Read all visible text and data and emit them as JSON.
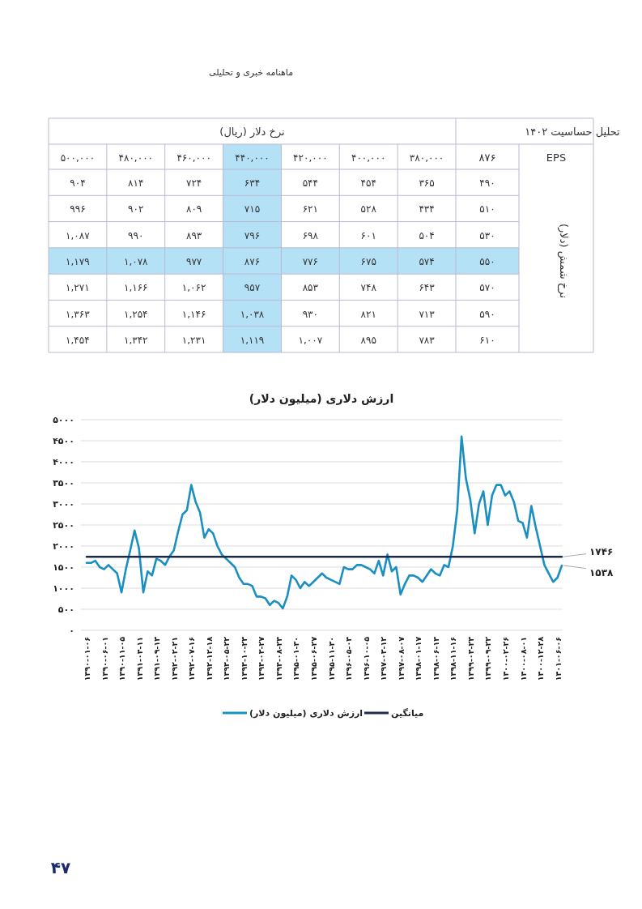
{
  "chart_data": [
    {
      "type": "heatmap",
      "subtitle": "ماهنامه خبری و تحلیلی",
      "xlabel": "نرخ دلار (ریال)",
      "ylabel": "نرخ شمش (دلار)",
      "annotations": [
        "EPS",
        "۸۷۶",
        "تحلیل حساسیت ۱۴۰۲"
      ],
      "categories": [
        "۵۰۰,۰۰۰",
        "۴۸۰,۰۰۰",
        "۴۶۰,۰۰۰",
        "۴۴۰,۰۰۰",
        "۴۲۰,۰۰۰",
        "۴۰۰,۰۰۰",
        "۳۸۰,۰۰۰"
      ],
      "y_categories": [
        "۴۹۰",
        "۵۱۰",
        "۵۳۰",
        "۵۵۰",
        "۵۷۰",
        "۵۹۰",
        "۶۱۰"
      ],
      "cells": [
        [
          904,
          814,
          724,
          634,
          544,
          454,
          365
        ],
        [
          996,
          902,
          809,
          715,
          621,
          528,
          434
        ],
        [
          1087,
          990,
          893,
          796,
          698,
          601,
          504
        ],
        [
          1179,
          1078,
          977,
          876,
          776,
          675,
          574
        ],
        [
          1271,
          1166,
          1062,
          957,
          853,
          748,
          643
        ],
        [
          1363,
          1254,
          1146,
          1038,
          930,
          821,
          713
        ],
        [
          1454,
          1342,
          1231,
          1119,
          1007,
          895,
          783
        ]
      ],
      "cell_labels": [
        [
          "۹۰۴",
          "۸۱۴",
          "۷۲۴",
          "۶۳۴",
          "۵۴۴",
          "۴۵۴",
          "۳۶۵"
        ],
        [
          "۹۹۶",
          "۹۰۲",
          "۸۰۹",
          "۷۱۵",
          "۶۲۱",
          "۵۲۸",
          "۴۳۴"
        ],
        [
          "۱,۰۸۷",
          "۹۹۰",
          "۸۹۳",
          "۷۹۶",
          "۶۹۸",
          "۶۰۱",
          "۵۰۴"
        ],
        [
          "۱,۱۷۹",
          "۱,۰۷۸",
          "۹۷۷",
          "۸۷۶",
          "۷۷۶",
          "۶۷۵",
          "۵۷۴"
        ],
        [
          "۱,۲۷۱",
          "۱,۱۶۶",
          "۱,۰۶۲",
          "۹۵۷",
          "۸۵۳",
          "۷۴۸",
          "۶۴۳"
        ],
        [
          "۱,۳۶۳",
          "۱,۲۵۴",
          "۱,۱۴۶",
          "۱,۰۳۸",
          "۹۳۰",
          "۸۲۱",
          "۷۱۳"
        ],
        [
          "۱,۴۵۴",
          "۱,۳۴۲",
          "۱,۲۳۱",
          "۱,۱۱۹",
          "۱,۰۰۷",
          "۸۹۵",
          "۷۸۳"
        ]
      ],
      "bands": [
        {
          "axis": "x",
          "from": "۴۴۰,۰۰۰",
          "to": "۴۴۰,۰۰۰",
          "color": "#b5e1f6"
        },
        {
          "axis": "y",
          "from": "۵۵۰",
          "to": "۵۵۰",
          "color": "#b5e1f6"
        }
      ]
    },
    {
      "type": "line",
      "title": "ارزش دلاری (میلیون دلار)",
      "annotations": [
        "۴۷"
      ],
      "legend": "bottom",
      "grid": "y",
      "ylim": [
        0,
        5000
      ],
      "yticks": [
        {
          "value": 0,
          "label": "۰"
        },
        {
          "value": 500,
          "label": "۵۰۰"
        },
        {
          "value": 1000,
          "label": "۱۰۰۰"
        },
        {
          "value": 1500,
          "label": "۱۵۰۰"
        },
        {
          "value": 2000,
          "label": "۲۰۰۰"
        },
        {
          "value": 2500,
          "label": "۲۵۰۰"
        },
        {
          "value": 3000,
          "label": "۳۰۰۰"
        },
        {
          "value": 3500,
          "label": "۳۵۰۰"
        },
        {
          "value": 4000,
          "label": "۴۰۰۰"
        },
        {
          "value": 4500,
          "label": "۴۵۰۰"
        },
        {
          "value": 5000,
          "label": "۵۰۰۰"
        }
      ],
      "categories": [
        "۱۳۹۰-۰۱-۰۶",
        null,
        null,
        null,
        "۱۳۹۰-۰۶-۰۱",
        null,
        null,
        null,
        "۱۳۹۰-۱۱-۰۵",
        null,
        null,
        null,
        "۱۳۹۱-۰۴-۱۱",
        null,
        null,
        null,
        "۱۳۹۱-۰۹-۱۳",
        null,
        null,
        null,
        "۱۳۹۲-۰۲-۲۱",
        null,
        null,
        null,
        "۱۳۹۲-۰۷-۱۶",
        null,
        null,
        null,
        "۱۳۹۲-۱۲-۱۸",
        null,
        null,
        null,
        "۱۳۹۳-۰۵-۲۲",
        null,
        null,
        null,
        "۱۳۹۳-۱۰-۲۳",
        null,
        null,
        null,
        "۱۳۹۴-۰۳-۲۷",
        null,
        null,
        null,
        "۱۳۹۴-۰۸-۲۴",
        null,
        null,
        null,
        "۱۳۹۵-۰۱-۳۰",
        null,
        null,
        null,
        "۱۳۹۵-۰۶-۲۷",
        null,
        null,
        null,
        "۱۳۹۵-۱۱-۳۰",
        null,
        null,
        null,
        "۱۳۹۶-۰۵-۰۴",
        null,
        null,
        null,
        "۱۳۹۶-۱۰-۰۵",
        null,
        null,
        null,
        "۱۳۹۷-۰۳-۱۲",
        null,
        null,
        null,
        "۱۳۹۷-۰۸-۰۷",
        null,
        null,
        null,
        "۱۳۹۸-۰۱-۱۷",
        null,
        null,
        null,
        "۱۳۹۸-۰۶-۱۳",
        null,
        null,
        null,
        "۱۳۹۸-۱۱-۱۶",
        null,
        null,
        null,
        "۱۳۹۹-۰۴-۲۳",
        null,
        null,
        null,
        "۱۳۹۹-۰۹-۲۲",
        null,
        null,
        null,
        "۱۴۰۰-۰۲-۲۶",
        null,
        null,
        null,
        "۱۴۰۰-۰۸-۰۱",
        null,
        null,
        null,
        "۱۴۰۰-۱۲-۲۸",
        null,
        null,
        null,
        "۱۴۰۱-۰۶-۰۶",
        null
      ],
      "series": [
        {
          "type": "line",
          "name": "ارزش دلاری (میلیون دلار)",
          "color": "#1a8fc2",
          "values": [
            1600,
            1600,
            1650,
            1500,
            1450,
            1550,
            1450,
            1350,
            900,
            1450,
            1900,
            2370,
            1950,
            900,
            1400,
            1300,
            1700,
            1650,
            1550,
            1750,
            1900,
            2350,
            2750,
            2850,
            3450,
            3050,
            2800,
            2200,
            2400,
            2300,
            2000,
            1800,
            1700,
            1600,
            1500,
            1250,
            1100,
            1100,
            1050,
            800,
            800,
            760,
            600,
            700,
            650,
            520,
            800,
            1300,
            1200,
            1000,
            1150,
            1050,
            1150,
            1250,
            1350,
            1250,
            1200,
            1150,
            1100,
            1500,
            1450,
            1450,
            1550,
            1550,
            1500,
            1450,
            1350,
            1650,
            1300,
            1800,
            1400,
            1500,
            850,
            1100,
            1300,
            1300,
            1250,
            1150,
            1300,
            1450,
            1350,
            1300,
            1550,
            1500,
            2000,
            2850,
            4600,
            3600,
            3100,
            2300,
            3000,
            3300,
            2500,
            3200,
            3450,
            3450,
            3200,
            3300,
            3050,
            2600,
            2550,
            2200,
            2950,
            2450,
            2000,
            1550,
            1350,
            1150,
            1250,
            1538
          ],
          "value_labels": [
            null,
            null,
            null,
            null,
            null,
            null,
            null,
            null,
            null,
            null,
            null,
            null,
            null,
            null,
            null,
            null,
            null,
            null,
            null,
            null,
            null,
            null,
            null,
            null,
            null,
            null,
            null,
            null,
            null,
            null,
            null,
            null,
            null,
            null,
            null,
            null,
            null,
            null,
            null,
            null,
            null,
            null,
            null,
            null,
            null,
            null,
            null,
            null,
            null,
            null,
            null,
            null,
            null,
            null,
            null,
            null,
            null,
            null,
            null,
            null,
            null,
            null,
            null,
            null,
            null,
            null,
            null,
            null,
            null,
            null,
            null,
            null,
            null,
            null,
            null,
            null,
            null,
            null,
            null,
            null,
            null,
            null,
            null,
            null,
            null,
            null,
            null,
            null,
            null,
            null,
            null,
            null,
            null,
            null,
            null,
            null,
            null,
            null,
            null,
            null,
            null,
            null,
            null,
            null,
            null,
            null,
            null,
            null,
            null,
            "۱۵۳۸"
          ]
        },
        {
          "type": "line",
          "name": "میانگین",
          "color": "#1b2a4e",
          "values": [
            1746,
            1746,
            1746,
            1746,
            1746,
            1746,
            1746,
            1746,
            1746,
            1746,
            1746,
            1746,
            1746,
            1746,
            1746,
            1746,
            1746,
            1746,
            1746,
            1746,
            1746,
            1746,
            1746,
            1746,
            1746,
            1746,
            1746,
            1746,
            1746,
            1746,
            1746,
            1746,
            1746,
            1746,
            1746,
            1746,
            1746,
            1746,
            1746,
            1746,
            1746,
            1746,
            1746,
            1746,
            1746,
            1746,
            1746,
            1746,
            1746,
            1746,
            1746,
            1746,
            1746,
            1746,
            1746,
            1746,
            1746,
            1746,
            1746,
            1746,
            1746,
            1746,
            1746,
            1746,
            1746,
            1746,
            1746,
            1746,
            1746,
            1746,
            1746,
            1746,
            1746,
            1746,
            1746,
            1746,
            1746,
            1746,
            1746,
            1746,
            1746,
            1746,
            1746,
            1746,
            1746,
            1746,
            1746,
            1746,
            1746,
            1746,
            1746,
            1746,
            1746,
            1746,
            1746,
            1746,
            1746,
            1746,
            1746,
            1746,
            1746,
            1746,
            1746,
            1746,
            1746,
            1746,
            1746,
            1746,
            1746,
            1746
          ],
          "value_labels": [
            null,
            null,
            null,
            null,
            null,
            null,
            null,
            null,
            null,
            null,
            null,
            null,
            null,
            null,
            null,
            null,
            null,
            null,
            null,
            null,
            null,
            null,
            null,
            null,
            null,
            null,
            null,
            null,
            null,
            null,
            null,
            null,
            null,
            null,
            null,
            null,
            null,
            null,
            null,
            null,
            null,
            null,
            null,
            null,
            null,
            null,
            null,
            null,
            null,
            null,
            null,
            null,
            null,
            null,
            null,
            null,
            null,
            null,
            null,
            null,
            null,
            null,
            null,
            null,
            null,
            null,
            null,
            null,
            null,
            null,
            null,
            null,
            null,
            null,
            null,
            null,
            null,
            null,
            null,
            null,
            null,
            null,
            null,
            null,
            null,
            null,
            null,
            null,
            null,
            null,
            null,
            null,
            null,
            null,
            null,
            null,
            null,
            null,
            null,
            null,
            null,
            null,
            null,
            null,
            null,
            null,
            null,
            null,
            null,
            "۱۷۴۶"
          ]
        }
      ]
    }
  ]
}
